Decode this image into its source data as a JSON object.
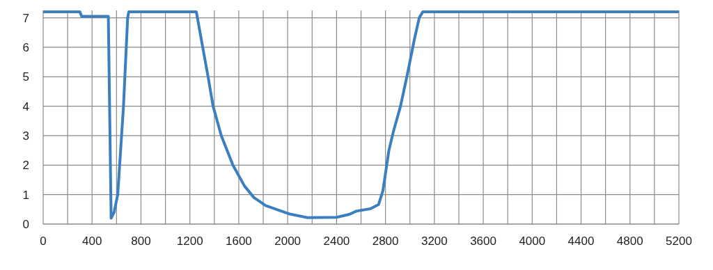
{
  "chart_data": {
    "type": "line",
    "x": [
      0,
      300,
      315,
      533,
      545,
      556,
      580,
      610,
      657,
      691,
      700,
      1253,
      1305,
      1349,
      1390,
      1457,
      1552,
      1647,
      1724,
      1819,
      2009,
      2162,
      2400,
      2505,
      2562,
      2676,
      2743,
      2779,
      2828,
      2866,
      2923,
      2980,
      3038,
      3076,
      3105,
      5200
    ],
    "series": [
      {
        "color": "#3b7fc0",
        "values": [
          7.2,
          7.2,
          7.05,
          7.05,
          3.5,
          0.2,
          0.4,
          1,
          4,
          7,
          7.2,
          7.2,
          6,
          5,
          4,
          3,
          2,
          1.29,
          0.9,
          0.63,
          0.35,
          0.22,
          0.23,
          0.33,
          0.44,
          0.52,
          0.66,
          1.13,
          2.5,
          3.16,
          4,
          5.1,
          6.3,
          7,
          7.2,
          7.2
        ]
      }
    ],
    "xlim": [
      0,
      5200
    ],
    "ylim": [
      0,
      7.25
    ],
    "xticks": [
      0,
      {
        "value": 200,
        "label": null
      },
      400,
      {
        "value": 600,
        "label": null
      },
      800,
      {
        "value": 1000,
        "label": null
      },
      1200,
      {
        "value": 1400,
        "label": null
      },
      1600,
      {
        "value": 1800,
        "label": null
      },
      2000,
      {
        "value": 2200,
        "label": null
      },
      2400,
      {
        "value": 2600,
        "label": null
      },
      2800,
      {
        "value": 3000,
        "label": null
      },
      3200,
      {
        "value": 3400,
        "label": null
      },
      3600,
      {
        "value": 3800,
        "label": null
      },
      4000,
      {
        "value": 4200,
        "label": null
      },
      4400,
      {
        "value": 4600,
        "label": null
      },
      4800,
      {
        "value": 5000,
        "label": null
      },
      5200
    ],
    "yticks": [
      0,
      1,
      2,
      3,
      4,
      5,
      6,
      7
    ],
    "grid": true,
    "marker": "none",
    "line_style": "solid"
  }
}
